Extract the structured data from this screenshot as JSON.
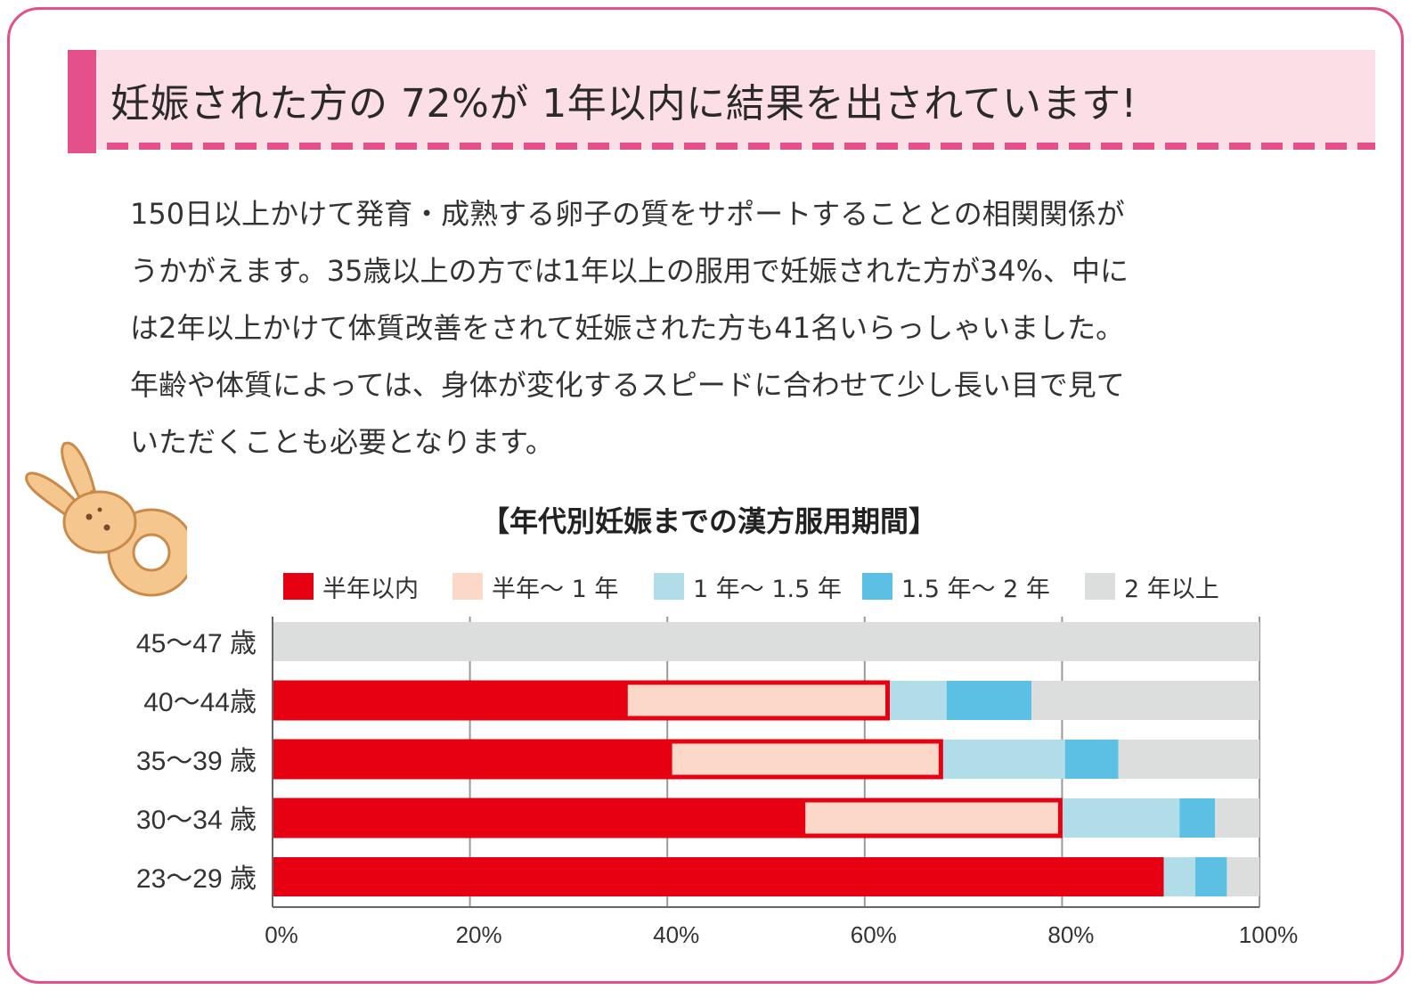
{
  "headline": "妊娠された方の 72%が 1年以内に結果を出されています!",
  "body_lines": [
    "150日以上かけて発育・成熟する卵子の質をサポートすることとの相関関係が",
    "うかがえます。35歳以上の方では1年以上の服用で妊娠された方が34%、中に",
    "は2年以上かけて体質改善をされて妊娠された方も41名いらっしゃいました。",
    "年齢や体質によっては、身体が変化するスピードに合わせて少し長い目で見て",
    "いただくことも必要となります。"
  ],
  "colors": {
    "frame": "#e4508a",
    "headline_bg": "#fcdfe6",
    "highlight_border": "#e60012"
  },
  "chart_data": {
    "type": "bar",
    "orientation": "horizontal",
    "stacked": true,
    "title": "【年代別妊娠までの漢方服用期間】",
    "categories": [
      "45〜47 歳",
      "40〜44歳",
      "35〜39 歳",
      "30〜34 歳",
      "23〜29 歳"
    ],
    "series": [
      {
        "name": "半年以内",
        "color": "#e60012",
        "values": [
          0,
          36,
          40.5,
          54,
          90.3
        ]
      },
      {
        "name": "半年〜 1 年",
        "color": "#fbd8c8",
        "values": [
          0,
          26.5,
          27.4,
          26,
          0
        ]
      },
      {
        "name": "1 年〜 1.5 年",
        "color": "#b1dde9",
        "values": [
          0,
          5.8,
          12.4,
          11.9,
          3.2
        ]
      },
      {
        "name": "1.5 年〜 2 年",
        "color": "#5bc0e3",
        "values": [
          0,
          8.6,
          5.4,
          3.6,
          3.2
        ]
      },
      {
        "name": "2 年以上",
        "color": "#dcdddd",
        "values": [
          100,
          23.1,
          14.3,
          4.5,
          3.3
        ]
      }
    ],
    "highlight": "半年以内 + 半年〜 1 年 (1年以内) outlined in red",
    "xlim": [
      0,
      100
    ],
    "x_ticks": [
      "0%",
      "20%",
      "40%",
      "60%",
      "80%",
      "100%"
    ],
    "grid": "vertical",
    "legend_position": "top"
  }
}
